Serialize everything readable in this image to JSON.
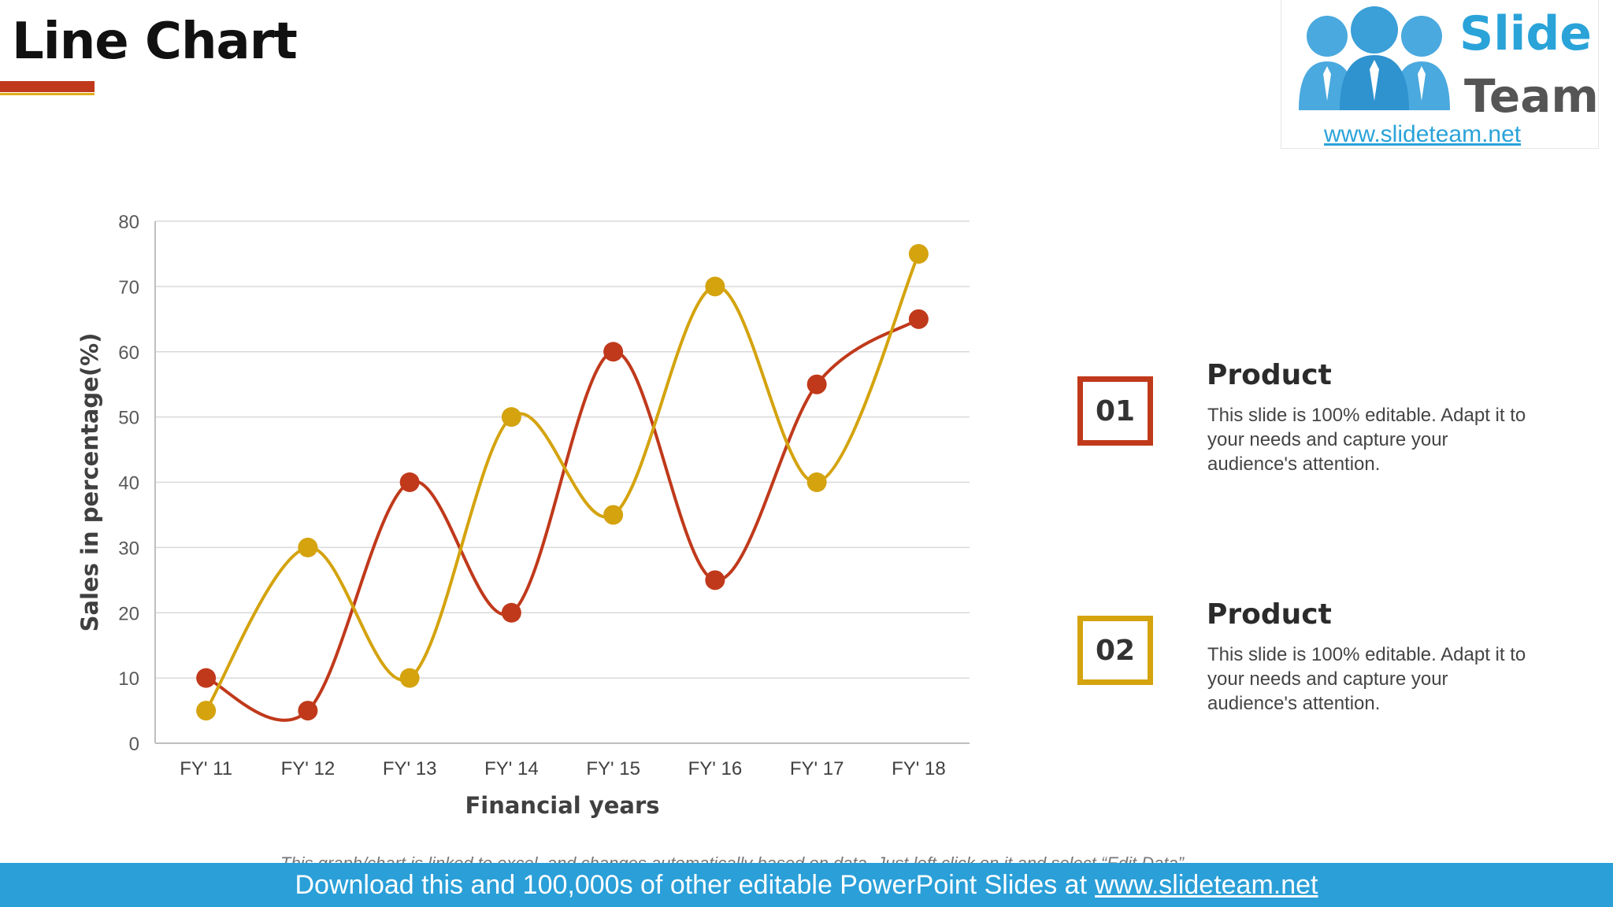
{
  "slide": {
    "title": "Line Chart",
    "accent_red": "#c0391b",
    "accent_gold": "#d4a30e"
  },
  "logo": {
    "word1": "Slide",
    "word2": "Team",
    "url": "www.slideteam.net",
    "icon": "people-group-icon"
  },
  "legend": [
    {
      "number": "01",
      "title": "Product",
      "text": "This slide is 100% editable. Adapt it to your needs and capture your audience's attention.",
      "color": "#c0391b"
    },
    {
      "number": "02",
      "title": "Product",
      "text": "This slide is 100% editable. Adapt it to your needs and capture your audience's attention.",
      "color": "#d4a30e"
    }
  ],
  "note": "This graph/chart is linked to excel, and changes automatically based on data. Just left click on it and select “Edit Data”.",
  "footer": {
    "text": "Download this and 100,000s of other editable PowerPoint Slides at",
    "url": "www.slideteam.net"
  },
  "chart_data": {
    "type": "line",
    "smooth": true,
    "categories": [
      "FY' 11",
      "FY' 12",
      "FY' 13",
      "FY' 14",
      "FY' 15",
      "FY' 16",
      "FY' 17",
      "FY' 18"
    ],
    "series": [
      {
        "color": "#c0391b",
        "values": [
          10,
          5,
          40,
          20,
          60,
          25,
          55,
          65
        ]
      },
      {
        "color": "#d4a30e",
        "values": [
          5,
          30,
          10,
          50,
          35,
          70,
          40,
          75
        ]
      }
    ],
    "xlabel": "Financial years",
    "ylabel": "Sales in percentage(%)",
    "ylim": [
      0,
      80
    ],
    "yticks": [
      0,
      10,
      20,
      30,
      40,
      50,
      60,
      70,
      80
    ],
    "grid": true
  }
}
